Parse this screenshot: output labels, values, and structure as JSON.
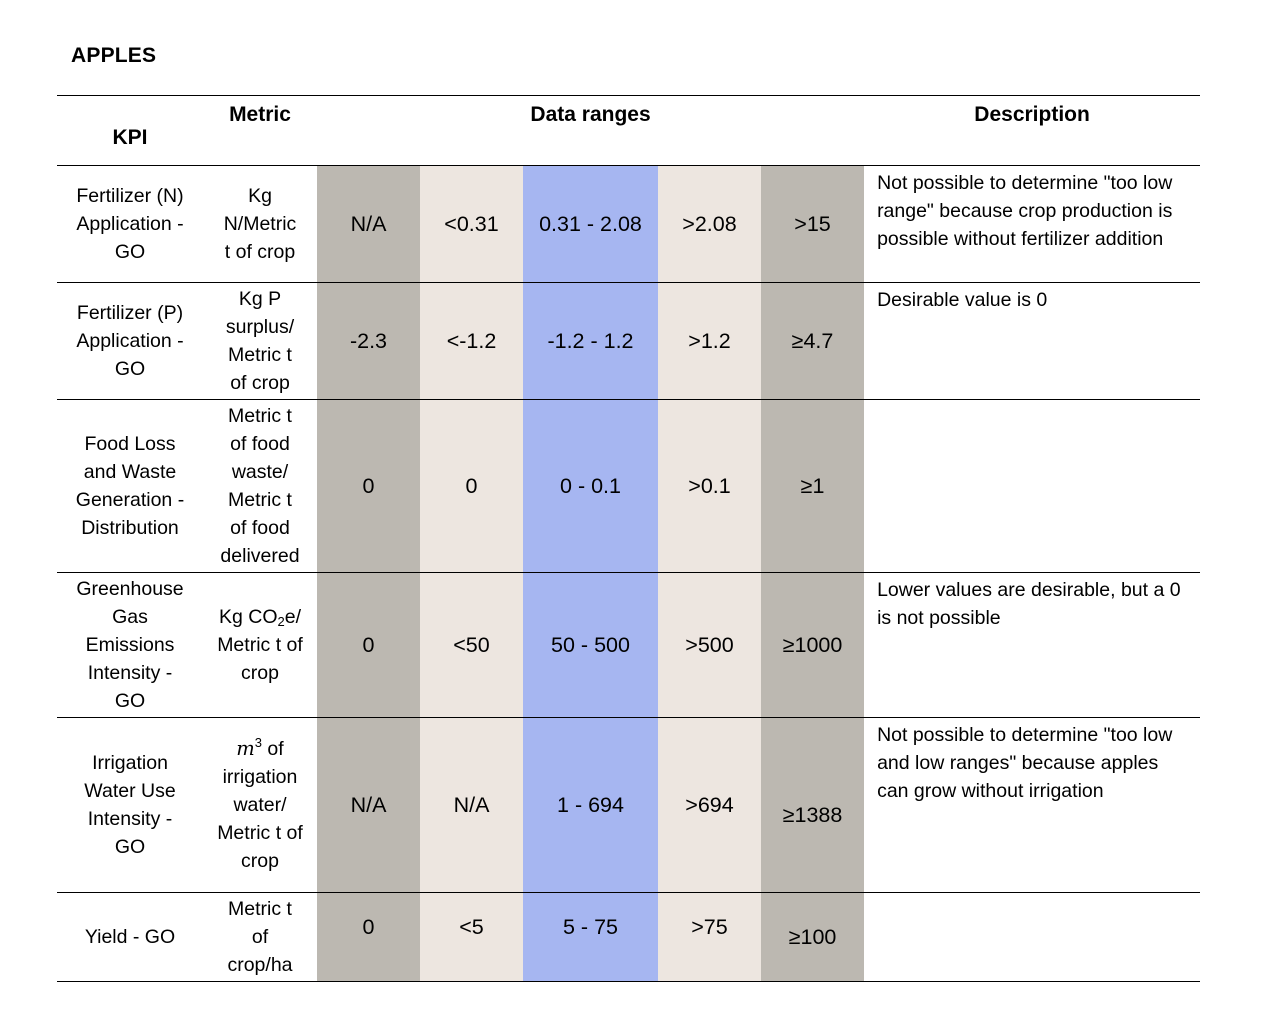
{
  "title": "APPLES",
  "headers": {
    "kpi": "KPI",
    "metric": "Metric",
    "ranges": "Data ranges",
    "description": "Description"
  },
  "range_colors": {
    "outer": "#bcb8b1",
    "inner": "#ede6e0",
    "desirable": "#a6b6f1"
  },
  "rows": [
    {
      "kpi": "Fertilizer (N) Application - GO",
      "metric": "Kg N/Metric t of crop",
      "ranges": [
        "N/A",
        "<0.31",
        "0.31 - 2.08",
        ">2.08",
        ">15"
      ],
      "description": "Not possible to determine \"too low range\" because crop production is possible without fertilizer addition"
    },
    {
      "kpi": "Fertilizer (P) Application - GO",
      "metric": "Kg P surplus/ Metric t of crop",
      "ranges": [
        "-2.3",
        "<-1.2",
        "-1.2 - 1.2",
        ">1.2",
        "≥4.7"
      ],
      "description": "Desirable value is 0"
    },
    {
      "kpi": "Food Loss and Waste Generation - Distribution",
      "metric": "Metric t of food waste/ Metric t of food delivered",
      "ranges": [
        "0",
        "0",
        "0 - 0.1",
        ">0.1",
        "≥1"
      ],
      "description": ""
    },
    {
      "kpi": "Greenhouse Gas Emissions Intensity - GO",
      "metric_prefix": "Kg CO",
      "metric_sub": "2",
      "metric_suffix": "e/ Metric t of crop",
      "ranges": [
        "0",
        "<50",
        "50 - 500",
        ">500",
        "≥1000"
      ],
      "description": "Lower values are desirable, but a 0 is not possible"
    },
    {
      "kpi": "Irrigation Water Use Intensity - GO",
      "metric_math": "m",
      "metric_sup": "3",
      "metric_suffix": " of irrigation water/ Metric t of crop",
      "ranges": [
        "N/A",
        "N/A",
        "1 - 694",
        ">694",
        "≥1388"
      ],
      "description": "Not possible to determine \"too low and low ranges\" because apples can grow without irrigation"
    },
    {
      "kpi": "Yield - GO",
      "metric": "Metric t of crop/ha",
      "ranges": [
        "0",
        "<5",
        "5 - 75",
        ">75",
        "≥100"
      ],
      "description": ""
    }
  ]
}
